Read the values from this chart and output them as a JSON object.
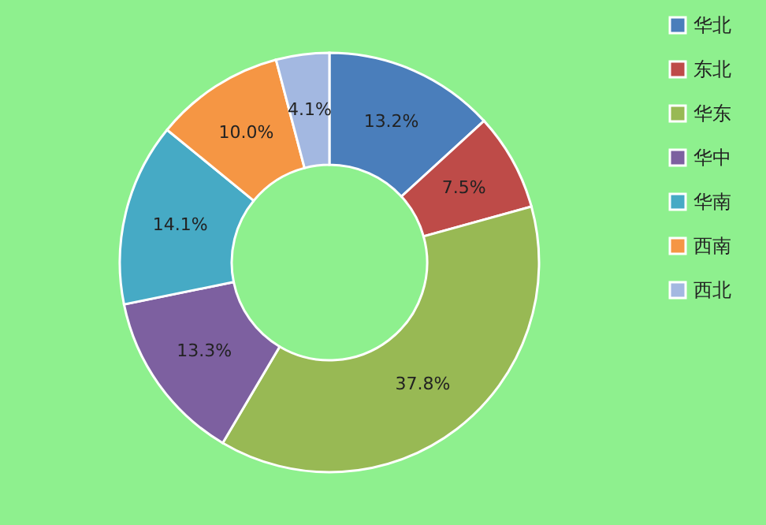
{
  "chart_data": {
    "type": "donut",
    "categories": [
      "华北",
      "东北",
      "华东",
      "华中",
      "华南",
      "西南",
      "西北"
    ],
    "values": [
      13.2,
      7.5,
      37.8,
      13.3,
      14.1,
      10.0,
      4.1
    ],
    "colors": [
      "#4a7ebb",
      "#be4b48",
      "#98b954",
      "#7d60a0",
      "#46aac5",
      "#f59644",
      "#a3b8e1"
    ],
    "value_labels": [
      "13.2%",
      "7.5%",
      "37.8%",
      "13.3%",
      "14.1%",
      "10.0%",
      "4.1%"
    ],
    "legend": "right"
  }
}
